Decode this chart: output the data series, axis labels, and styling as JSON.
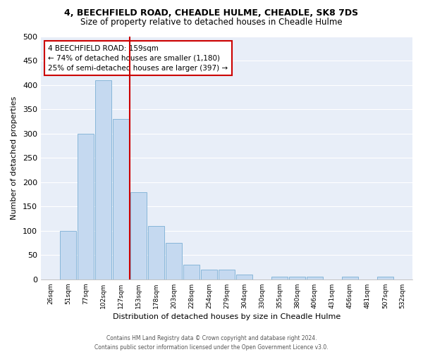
{
  "title": "4, BEECHFIELD ROAD, CHEADLE HULME, CHEADLE, SK8 7DS",
  "subtitle": "Size of property relative to detached houses in Cheadle Hulme",
  "xlabel": "Distribution of detached houses by size in Cheadle Hulme",
  "ylabel": "Number of detached properties",
  "bin_labels": [
    "26sqm",
    "51sqm",
    "77sqm",
    "102sqm",
    "127sqm",
    "153sqm",
    "178sqm",
    "203sqm",
    "228sqm",
    "254sqm",
    "279sqm",
    "304sqm",
    "330sqm",
    "355sqm",
    "380sqm",
    "406sqm",
    "431sqm",
    "456sqm",
    "481sqm",
    "507sqm",
    "532sqm"
  ],
  "bar_values": [
    0,
    100,
    300,
    410,
    330,
    180,
    110,
    75,
    30,
    20,
    20,
    10,
    0,
    5,
    5,
    5,
    0,
    5,
    0,
    5,
    0
  ],
  "bar_color": "#c5d9f0",
  "bar_edge_color": "#7bafd4",
  "vline_color": "#cc0000",
  "annotation_title": "4 BEECHFIELD ROAD: 159sqm",
  "annotation_line1": "← 74% of detached houses are smaller (1,180)",
  "annotation_line2": "25% of semi-detached houses are larger (397) →",
  "annotation_box_color": "white",
  "annotation_box_edge": "#cc0000",
  "ylim": [
    0,
    500
  ],
  "yticks": [
    0,
    50,
    100,
    150,
    200,
    250,
    300,
    350,
    400,
    450,
    500
  ],
  "footer1": "Contains HM Land Registry data © Crown copyright and database right 2024.",
  "footer2": "Contains public sector information licensed under the Open Government Licence v3.0.",
  "bg_color": "#ffffff",
  "plot_bg_color": "#e8eef8",
  "grid_color": "#ffffff",
  "title_fontsize": 9,
  "subtitle_fontsize": 8.5
}
